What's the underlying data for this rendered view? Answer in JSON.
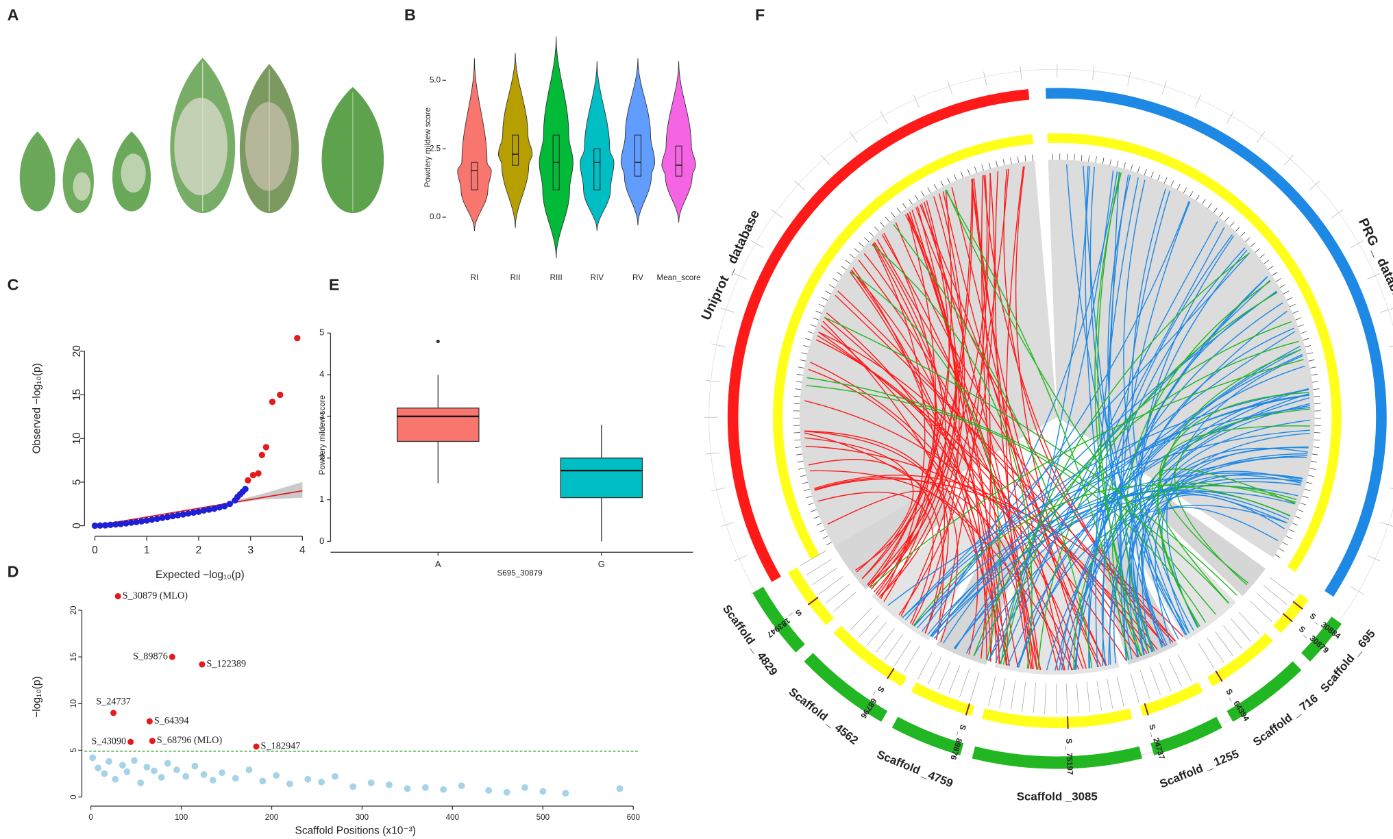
{
  "panel_labels": [
    "A",
    "B",
    "C",
    "D",
    "E",
    "F"
  ],
  "chart_data": [
    {
      "type": "violin",
      "ylabel": "Powdery mildew score",
      "categories": [
        "RI",
        "RII",
        "RIII",
        "RIV",
        "RV",
        "Mean_score"
      ],
      "colors": [
        "#f8766d",
        "#b79f00",
        "#00ba38",
        "#00bfc4",
        "#619cff",
        "#f564e3"
      ],
      "min": [
        -0.5,
        -0.4,
        -1.5,
        -0.5,
        -0.3,
        -0.2
      ],
      "q1": [
        1.0,
        1.9,
        1.0,
        1.0,
        1.5,
        1.5
      ],
      "median": [
        1.7,
        2.3,
        2.0,
        2.0,
        2.0,
        1.9
      ],
      "q3": [
        2.0,
        3.0,
        3.0,
        2.5,
        3.0,
        2.6
      ],
      "max": [
        5.8,
        6.0,
        6.6,
        5.7,
        5.8,
        5.7
      ],
      "ylim": [
        -1.6,
        6.7
      ],
      "yticks": [
        {
          "value": 0,
          "label": "0.0"
        },
        {
          "value": 2.5,
          "label": "2.5"
        },
        {
          "value": 5,
          "label": "5.0"
        }
      ]
    },
    {
      "type": "qq",
      "xlabel": "Expected −log₁₀(p)",
      "ylabel": "Observed −log₁₀(p)",
      "xlim": [
        -0.2,
        4.2
      ],
      "ylim": [
        -0.8,
        22.6
      ],
      "xticks": [
        0,
        1,
        2,
        3,
        4
      ],
      "yticks": [
        0,
        5,
        10,
        15,
        20
      ],
      "band": {
        "color": "#bdbdbd",
        "x": [
          2.5,
          3.2,
          4
        ],
        "lower": [
          2.4,
          3,
          3.2
        ],
        "upper": [
          2.6,
          3.6,
          5
        ]
      },
      "reference_line": {
        "color": "#e41a1c",
        "x": [
          0,
          4
        ],
        "values": [
          0,
          4
        ]
      },
      "series": [
        {
          "color": "#1f1fd6",
          "x": [
            0,
            0.1,
            0.2,
            0.3,
            0.4,
            0.5,
            0.6,
            0.7,
            0.8,
            0.9,
            1.0,
            1.1,
            1.2,
            1.3,
            1.4,
            1.5,
            1.6,
            1.7,
            1.8,
            1.9,
            2.0,
            2.1,
            2.2,
            2.3,
            2.4,
            2.5,
            2.6,
            2.7,
            2.75,
            2.8,
            2.85,
            2.9
          ],
          "values": [
            0,
            0.02,
            0.05,
            0.1,
            0.15,
            0.2,
            0.27,
            0.35,
            0.42,
            0.5,
            0.6,
            0.7,
            0.8,
            0.9,
            1.0,
            1.1,
            1.2,
            1.3,
            1.4,
            1.5,
            1.6,
            1.75,
            1.85,
            1.95,
            2.1,
            2.25,
            2.5,
            2.9,
            3.3,
            3.6,
            3.9,
            4.2
          ]
        },
        {
          "color": "#e41a1c",
          "x": [
            2.95,
            3.05,
            3.15,
            3.22,
            3.3,
            3.42,
            3.57,
            3.9
          ],
          "values": [
            5.2,
            5.8,
            6.0,
            8.1,
            9.0,
            14.2,
            15.0,
            21.5
          ]
        }
      ]
    },
    {
      "type": "manhattan",
      "xlabel": "Scaffold Positions (x10⁻³)",
      "ylabel": "−log₁₀(p)",
      "xlim": [
        -7,
        607
      ],
      "ylim": [
        -0.7,
        22.6
      ],
      "xticks": [
        0,
        100,
        200,
        300,
        400,
        500,
        600
      ],
      "yticks": [
        0,
        5,
        10,
        15,
        20
      ],
      "threshold": 4.9,
      "threshold_color": "#2ca02c",
      "series": [
        {
          "color": "#a6d3e6",
          "x": [
            2,
            8,
            15,
            20,
            27,
            35,
            40,
            48,
            55,
            62,
            70,
            78,
            85,
            95,
            105,
            115,
            125,
            135,
            145,
            160,
            175,
            190,
            205,
            220,
            240,
            255,
            270,
            290,
            310,
            330,
            350,
            370,
            390,
            410,
            440,
            460,
            480,
            500,
            525,
            585
          ],
          "values": [
            4.2,
            3.1,
            2.5,
            3.8,
            1.9,
            3.4,
            2.7,
            3.9,
            1.5,
            3.2,
            2.8,
            2.1,
            3.6,
            2.9,
            2.2,
            3.3,
            2.4,
            1.8,
            2.6,
            2.0,
            2.9,
            1.7,
            2.3,
            1.4,
            1.9,
            1.6,
            2.2,
            1.1,
            1.5,
            1.3,
            0.9,
            1.0,
            0.8,
            1.2,
            0.7,
            0.5,
            1.0,
            0.6,
            0.4,
            0.9
          ]
        },
        {
          "color": "#e41a1c",
          "x": [
            30,
            90,
            123,
            25,
            65,
            44,
            68,
            183
          ],
          "values": [
            21.5,
            15,
            14.2,
            9,
            8.1,
            5.9,
            6,
            5.4
          ],
          "point_labels": [
            "S_30879 (MLO)",
            "S_89876",
            "S_122389",
            "S_24737",
            "S_64394",
            "S_43090",
            "S_68796 (MLO)",
            "S_182947"
          ]
        }
      ]
    },
    {
      "type": "box",
      "ylabel": "Powdery mildew score",
      "xlabel": "S695_30879",
      "categories": [
        "A",
        "G"
      ],
      "colors": [
        "#f8766d",
        "#00bfc4"
      ],
      "whisker_low": [
        1.4,
        0
      ],
      "q1": [
        2.4,
        1.05
      ],
      "median": [
        3.0,
        1.7
      ],
      "q3": [
        3.2,
        2.0
      ],
      "whisker_high": [
        4.0,
        2.8
      ],
      "outliers": [
        [
          4.8
        ],
        []
      ],
      "ylim": [
        -0.26,
        5.28
      ],
      "yticks": [
        0,
        1,
        2,
        3,
        4,
        5
      ]
    }
  ],
  "circos": {
    "tracks": [
      {
        "label": "Uniprot _ database",
        "color": "#ff1a1a"
      },
      {
        "label": "PRG _ database",
        "color": "#1e88e5"
      }
    ],
    "ring_color": "#ffff1a",
    "scaffold_color": "#22b622",
    "snp_color": "#8b1a1a",
    "scaffolds": [
      "Scaffold _ 695",
      "Scaffold _ 716",
      "Scaffold _ 1255",
      "Scaffold _3085",
      "Scaffold _4759",
      "Scaffold _ 4562",
      "Scaffold _ 4829"
    ],
    "snps": [
      "S _ 30884",
      "S _ 30879",
      "S _ 64394",
      "S _ 24737",
      "S _ 75197",
      "S _ 89876",
      "S _ 68796",
      "S _ 183947"
    ]
  }
}
